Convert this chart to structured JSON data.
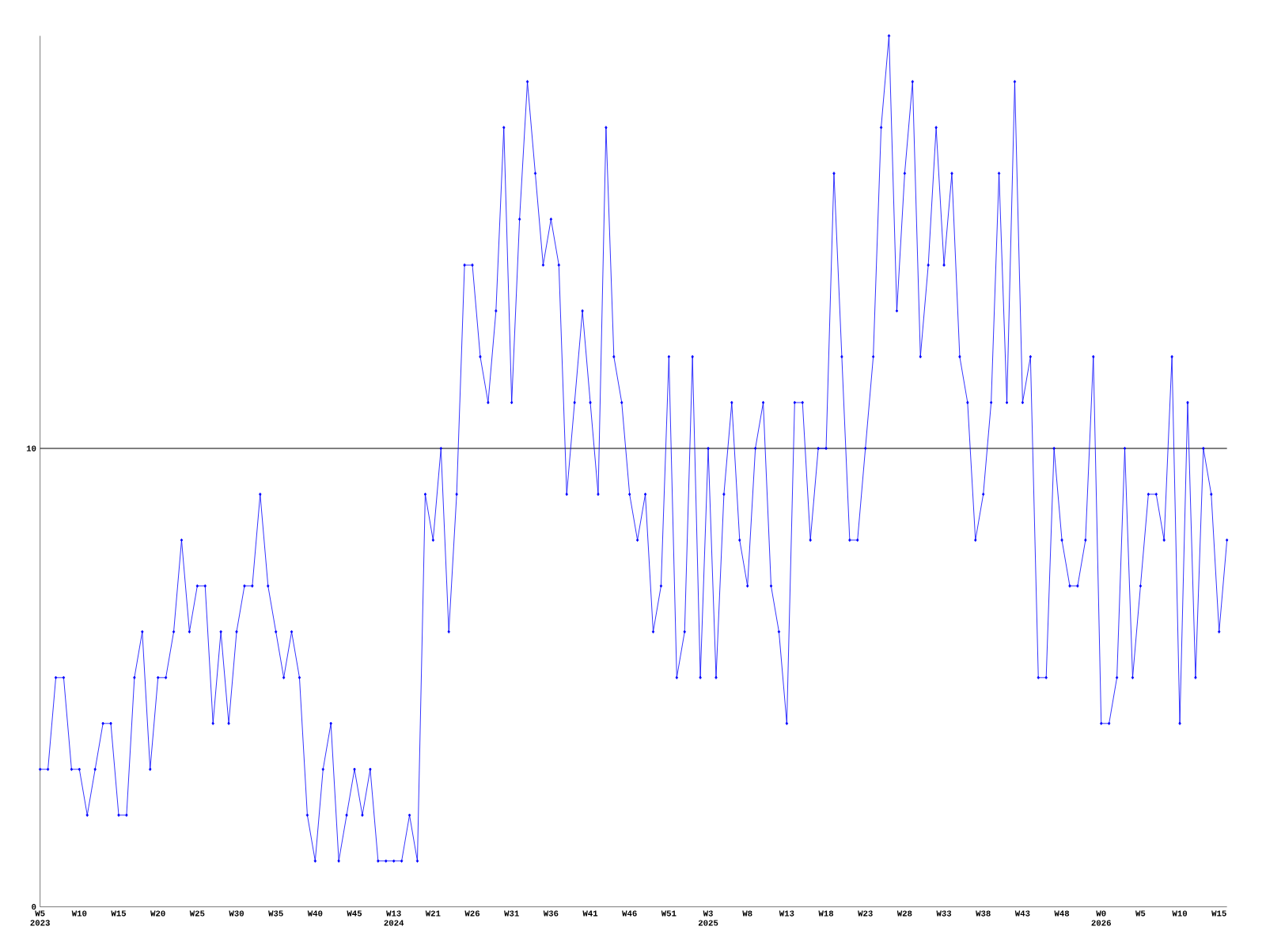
{
  "chart_data": {
    "type": "line",
    "categories": [
      "W5 2023",
      null,
      null,
      null,
      null,
      "W10",
      null,
      null,
      null,
      null,
      "W15",
      null,
      null,
      null,
      null,
      "W20",
      null,
      null,
      null,
      null,
      "W25",
      null,
      null,
      null,
      null,
      "W30",
      null,
      null,
      null,
      null,
      "W35",
      null,
      null,
      null,
      null,
      "W40",
      null,
      null,
      null,
      null,
      "W45",
      null,
      null,
      null,
      null,
      "W13 2024",
      null,
      null,
      null,
      null,
      "W21",
      null,
      null,
      null,
      null,
      "W26",
      null,
      null,
      null,
      null,
      "W31",
      null,
      null,
      null,
      null,
      "W36",
      null,
      null,
      null,
      null,
      "W41",
      null,
      null,
      null,
      null,
      "W46",
      null,
      null,
      null,
      null,
      "W51",
      null,
      null,
      null,
      null,
      "W3 2025",
      null,
      null,
      null,
      null,
      "W8",
      null,
      null,
      null,
      null,
      "W13",
      null,
      null,
      null,
      null,
      "W18",
      null,
      null,
      null,
      null,
      "W23",
      null,
      null,
      null,
      null,
      "W28",
      null,
      null,
      null,
      null,
      "W33",
      null,
      null,
      null,
      null,
      "W38",
      null,
      null,
      null,
      null,
      "W43",
      null,
      null,
      null,
      null,
      "W48",
      null,
      null,
      null,
      null,
      "W0 2026",
      null,
      null,
      null,
      null,
      "W5",
      null,
      null,
      null,
      null,
      "W10",
      null,
      null,
      null,
      null,
      "W15",
      null
    ],
    "values": [
      3,
      3,
      5,
      5,
      3,
      3,
      2,
      3,
      4,
      4,
      2,
      2,
      5,
      6,
      3,
      5,
      5,
      6,
      8,
      6,
      7,
      7,
      4,
      6,
      4,
      6,
      7,
      7,
      9,
      7,
      6,
      5,
      6,
      5,
      2,
      1,
      3,
      4,
      1,
      2,
      3,
      2,
      3,
      1,
      1,
      1,
      1,
      2,
      1,
      9,
      8,
      10,
      6,
      9,
      14,
      14,
      12,
      11,
      13,
      17,
      11,
      15,
      18,
      16,
      14,
      15,
      14,
      9,
      11,
      13,
      11,
      9,
      17,
      12,
      11,
      9,
      8,
      9,
      6,
      7,
      12,
      5,
      6,
      12,
      5,
      10,
      5,
      9,
      11,
      8,
      7,
      10,
      11,
      7,
      6,
      4,
      11,
      11,
      8,
      10,
      10,
      16,
      12,
      8,
      8,
      10,
      12,
      17,
      19,
      13,
      16,
      18,
      12,
      14,
      17,
      14,
      16,
      12,
      11,
      8,
      9,
      11,
      16,
      11,
      18,
      11,
      12,
      5,
      5,
      10,
      8,
      7,
      7,
      8,
      12,
      4,
      4,
      5,
      10,
      5,
      7,
      9,
      9,
      8,
      12,
      4,
      11,
      5,
      10,
      9,
      6,
      8
    ],
    "color": "#0000ff",
    "marker": "diamond",
    "ylim": [
      0,
      19
    ],
    "yticks": [
      0,
      10
    ],
    "ref_lines": [
      {
        "axis": "y",
        "value": 10,
        "color": "#000000"
      }
    ]
  }
}
